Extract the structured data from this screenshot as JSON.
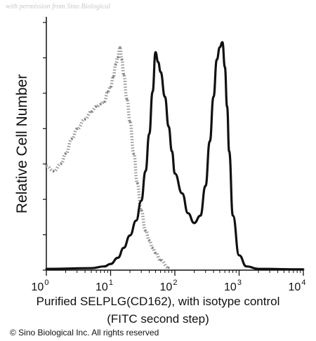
{
  "watermark": "with permission from Sino Biological",
  "copyright": "© Sino Biological Inc. All rights reserved",
  "chart_data": {
    "type": "area",
    "title": "",
    "xlabel_line1": "Purified SELPLG(CD162), with isotype control",
    "xlabel_line2": "(FITC second step)",
    "ylabel": "Relative Cell Number",
    "xscale": "log",
    "xlim": [
      1,
      10000
    ],
    "ylim": [
      0,
      100
    ],
    "grid": false,
    "legend": "none",
    "x_ticks": [
      {
        "base": "10",
        "exp": "0"
      },
      {
        "base": "10",
        "exp": "1"
      },
      {
        "base": "10",
        "exp": "2"
      },
      {
        "base": "10",
        "exp": "3"
      },
      {
        "base": "10",
        "exp": "4"
      }
    ],
    "series": [
      {
        "role": "isotype control",
        "style": "dotted",
        "color": "#8a8a8a",
        "x": [
          1,
          1.3,
          1.7,
          2,
          2.5,
          3,
          4,
          5,
          6,
          7,
          8,
          9,
          10,
          11,
          12,
          13,
          14,
          15,
          16,
          18,
          20,
          23,
          26,
          30,
          35,
          40,
          45,
          50,
          60,
          80
        ],
        "y": [
          42,
          40,
          43,
          47,
          53,
          57,
          61,
          64,
          66,
          67,
          68,
          72,
          74,
          78,
          83,
          86,
          90,
          85,
          79,
          69,
          60,
          47,
          35,
          24,
          16,
          12,
          9,
          7,
          4,
          1
        ]
      },
      {
        "role": "SELPLG",
        "style": "solid",
        "color": "#111111",
        "x": [
          1,
          5,
          8,
          10,
          13,
          16,
          20,
          25,
          30,
          35,
          40,
          45,
          50,
          55,
          60,
          70,
          80,
          90,
          100,
          130,
          160,
          200,
          250,
          300,
          350,
          400,
          450,
          500,
          550,
          600,
          650,
          700,
          800,
          1000,
          1300,
          2000,
          10000
        ],
        "y": [
          0.5,
          0.8,
          1.5,
          2.5,
          5,
          9,
          14,
          20,
          28,
          40,
          55,
          72,
          88,
          84,
          80,
          70,
          58,
          48,
          39,
          31,
          23,
          19,
          22,
          34,
          52,
          70,
          85,
          90,
          92,
          82,
          66,
          48,
          22,
          6,
          1.5,
          0.5,
          0.3
        ]
      }
    ]
  }
}
